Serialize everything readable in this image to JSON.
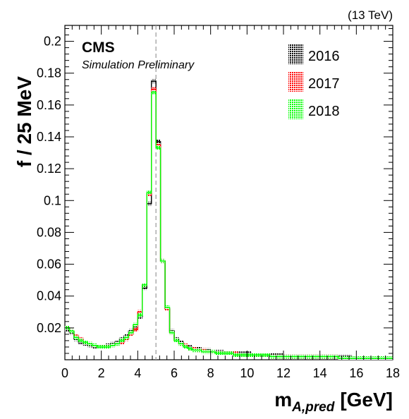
{
  "energy_label": "(13 TeV)",
  "cms_label": "CMS",
  "sim_label": "Simulation Preliminary",
  "chart_data": {
    "type": "line",
    "style": "step-histogram with shaded uncertainty bands",
    "xlabel_main": "m",
    "xlabel_sub": "A,pred",
    "xlabel_unit": "[GeV]",
    "ylabel": "f / 25 MeV",
    "xlim": [
      0,
      18
    ],
    "ylim": [
      0,
      0.21
    ],
    "grid": false,
    "legend_position": "top-right",
    "xticks": [
      "0",
      "2",
      "4",
      "6",
      "8",
      "10",
      "12",
      "14",
      "16",
      "18"
    ],
    "yticks": [
      "0.02",
      "0.04",
      "0.06",
      "0.08",
      "0.1",
      "0.12",
      "0.14",
      "0.16",
      "0.18",
      "0.2"
    ],
    "reference_line_x": 5.0,
    "bin_width": 0.25,
    "series": [
      {
        "name": "2016",
        "color": "#000000",
        "values": [
          0.019,
          0.017,
          0.013,
          0.011,
          0.01,
          0.009,
          0.008,
          0.008,
          0.008,
          0.009,
          0.01,
          0.011,
          0.013,
          0.015,
          0.018,
          0.02,
          0.027,
          0.045,
          0.098,
          0.175,
          0.137,
          0.062,
          0.032,
          0.018,
          0.013,
          0.011,
          0.009,
          0.008,
          0.007,
          0.007,
          0.006,
          0.006,
          0.005,
          0.005,
          0.005,
          0.004,
          0.004,
          0.004,
          0.004,
          0.004,
          0.004,
          0.003,
          0.003,
          0.003,
          0.003,
          0.003,
          0.003,
          0.003,
          0.002,
          0.002,
          0.002,
          0.002,
          0.002,
          0.002,
          0.002,
          0.002,
          0.002,
          0.002,
          0.002,
          0.002,
          0.002,
          0.002,
          0.002,
          0.001,
          0.001,
          0.001,
          0.001,
          0.001,
          0.001,
          0.001,
          0.001,
          0.001
        ]
      },
      {
        "name": "2017",
        "color": "#ff0000",
        "values": [
          0.02,
          0.018,
          0.015,
          0.013,
          0.011,
          0.01,
          0.009,
          0.008,
          0.008,
          0.008,
          0.009,
          0.01,
          0.011,
          0.013,
          0.016,
          0.019,
          0.03,
          0.047,
          0.104,
          0.17,
          0.135,
          0.062,
          0.032,
          0.017,
          0.012,
          0.01,
          0.009,
          0.007,
          0.007,
          0.006,
          0.006,
          0.005,
          0.005,
          0.004,
          0.004,
          0.004,
          0.004,
          0.004,
          0.003,
          0.003,
          0.003,
          0.003,
          0.003,
          0.003,
          0.003,
          0.002,
          0.002,
          0.002,
          0.002,
          0.002,
          0.002,
          0.002,
          0.002,
          0.002,
          0.002,
          0.002,
          0.002,
          0.002,
          0.002,
          0.002,
          0.001,
          0.001,
          0.001,
          0.001,
          0.001,
          0.001,
          0.001,
          0.001,
          0.001,
          0.001,
          0.001,
          0.001
        ]
      },
      {
        "name": "2018",
        "color": "#00ff00",
        "values": [
          0.02,
          0.018,
          0.014,
          0.012,
          0.011,
          0.01,
          0.009,
          0.008,
          0.008,
          0.008,
          0.009,
          0.01,
          0.012,
          0.014,
          0.017,
          0.022,
          0.028,
          0.047,
          0.105,
          0.168,
          0.133,
          0.062,
          0.033,
          0.017,
          0.012,
          0.01,
          0.008,
          0.007,
          0.006,
          0.006,
          0.005,
          0.005,
          0.005,
          0.004,
          0.004,
          0.004,
          0.004,
          0.003,
          0.003,
          0.003,
          0.003,
          0.003,
          0.003,
          0.003,
          0.003,
          0.002,
          0.002,
          0.002,
          0.002,
          0.002,
          0.002,
          0.002,
          0.002,
          0.002,
          0.002,
          0.002,
          0.002,
          0.002,
          0.002,
          0.002,
          0.001,
          0.001,
          0.001,
          0.001,
          0.001,
          0.001,
          0.001,
          0.001,
          0.001,
          0.001,
          0.001,
          0.001
        ]
      }
    ]
  }
}
